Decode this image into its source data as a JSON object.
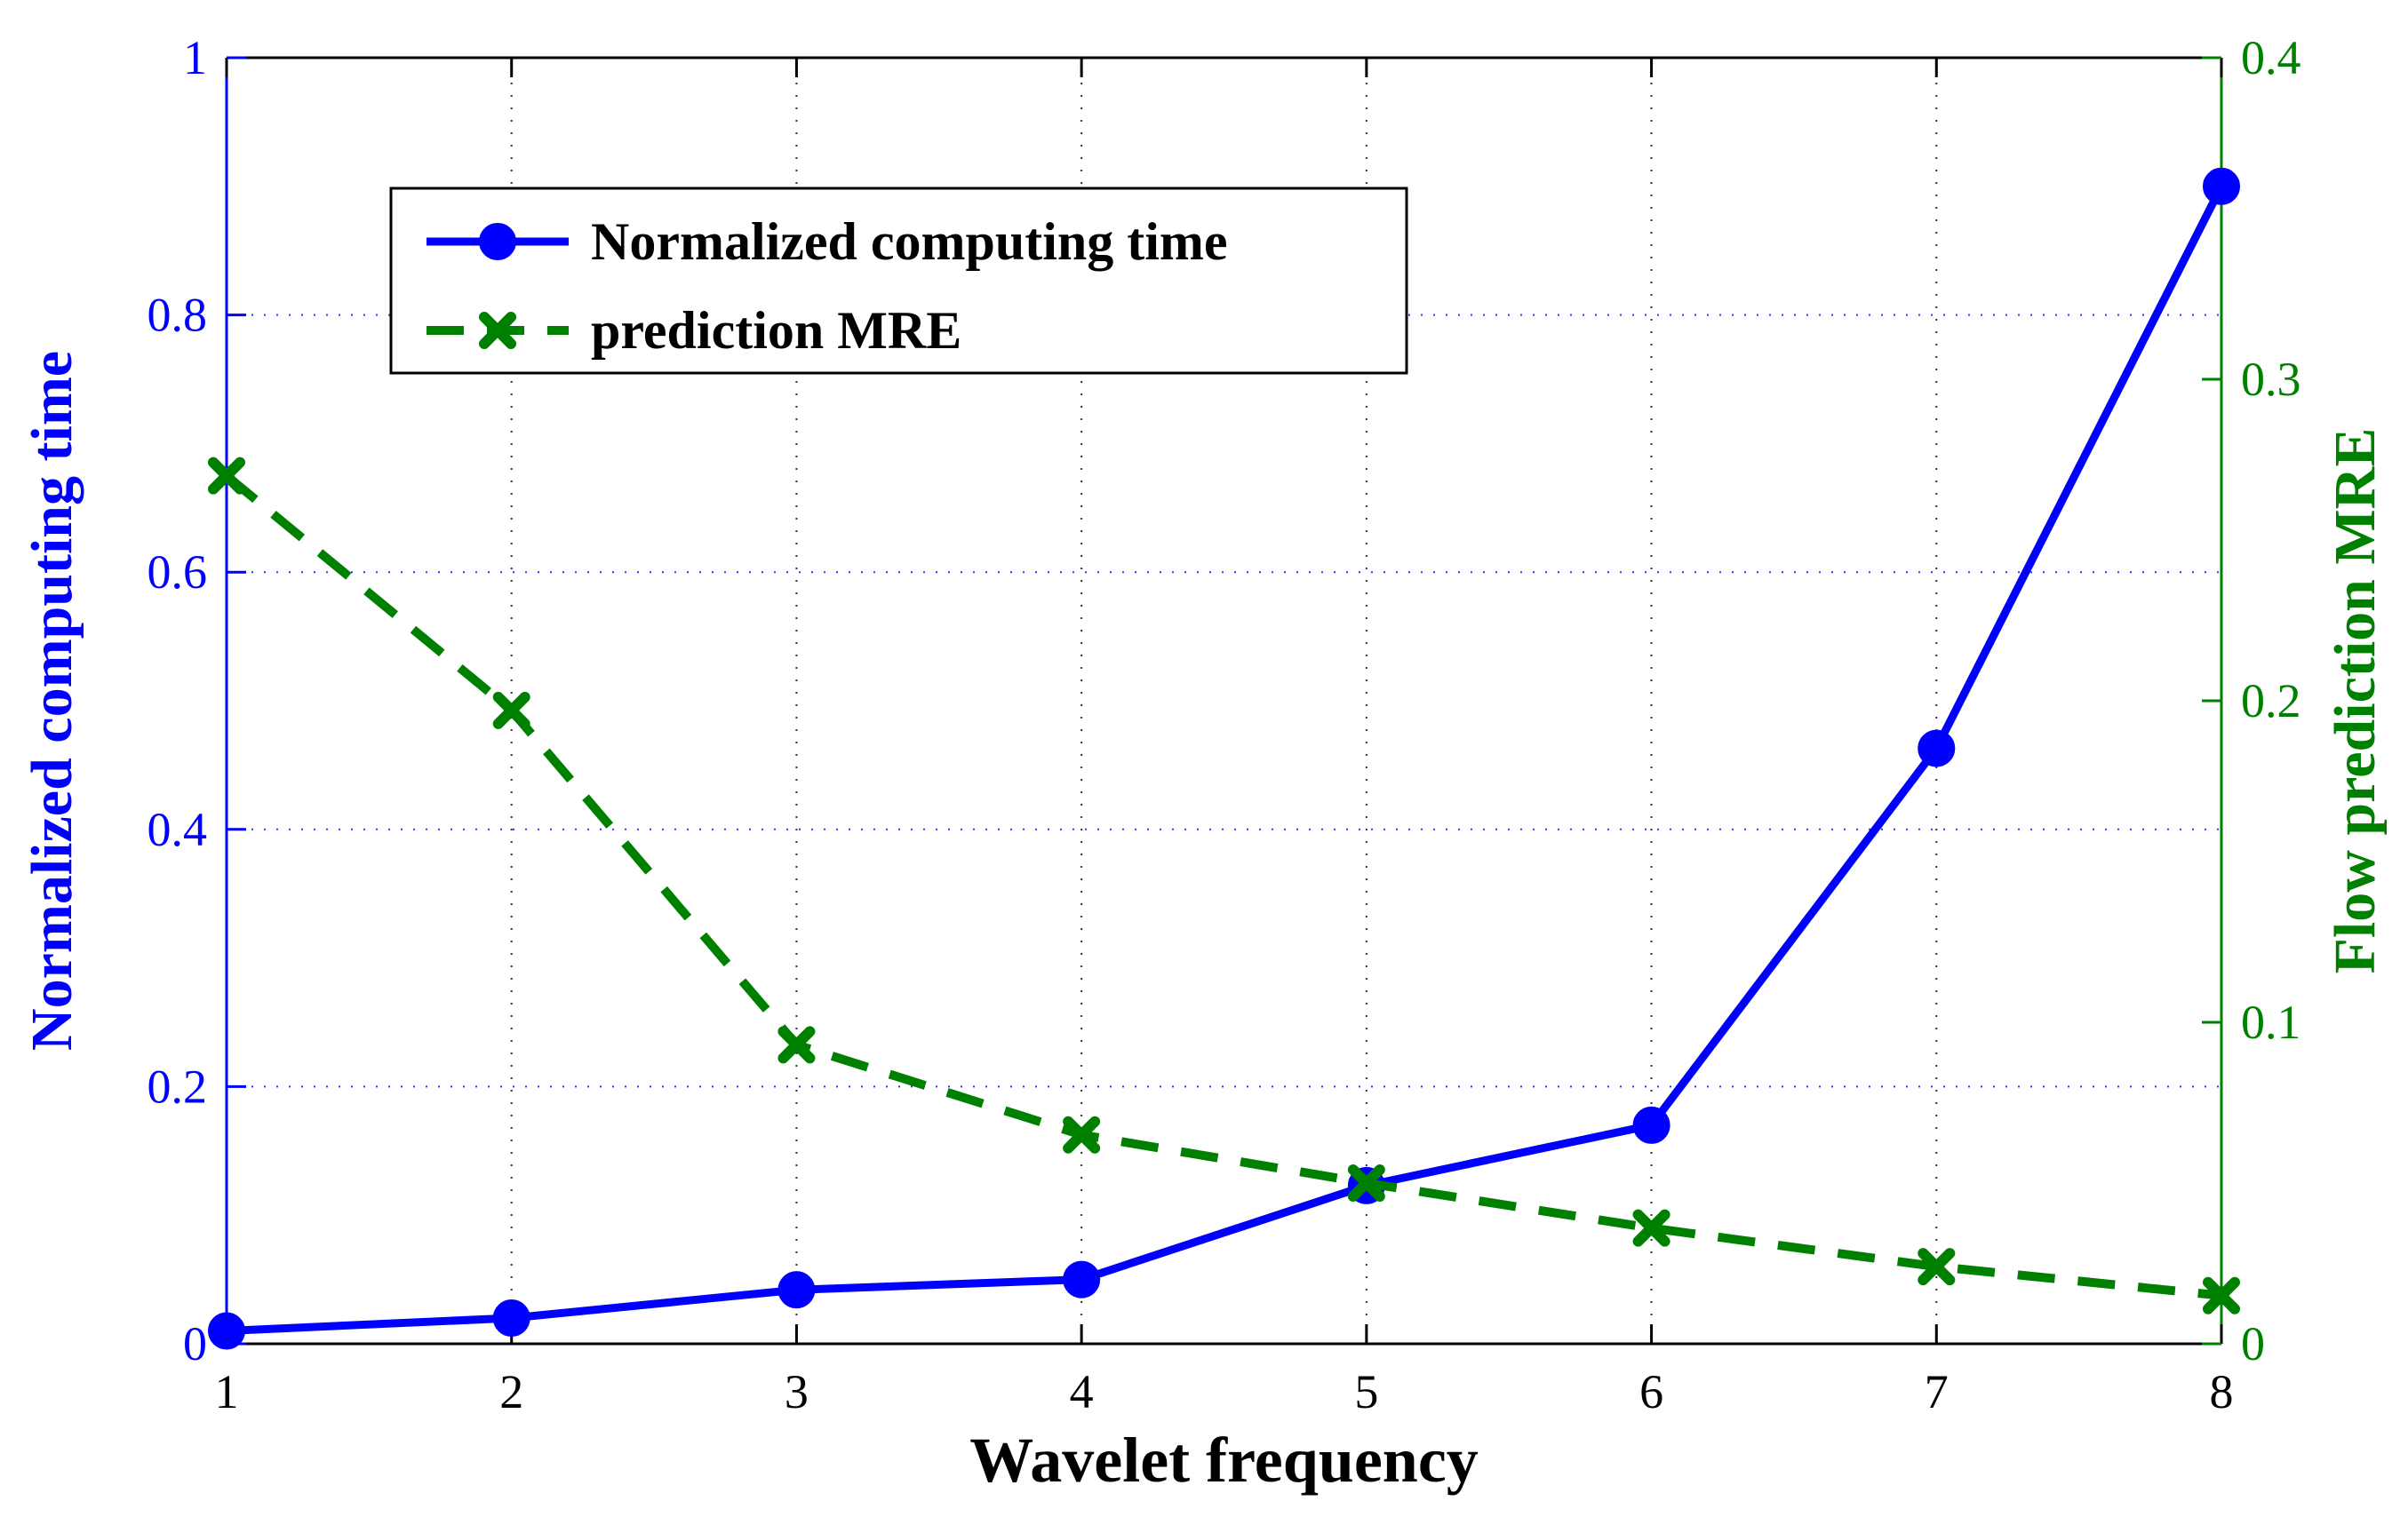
{
  "chart_data": {
    "type": "line",
    "title": "",
    "xlabel": "Wavelet frequency",
    "ylabel_left": "Normalized computing time",
    "ylabel_right": "Flow prediction MRE",
    "x": [
      1,
      2,
      3,
      4,
      5,
      6,
      7,
      8
    ],
    "xlim": [
      1,
      8
    ],
    "ylim_left": [
      0,
      1
    ],
    "ylim_right": [
      0,
      0.4
    ],
    "x_ticks": [
      1,
      2,
      3,
      4,
      5,
      6,
      7,
      8
    ],
    "x_tick_labels": [
      "1",
      "2",
      "3",
      "4",
      "5",
      "6",
      "7",
      "8"
    ],
    "y_left_ticks": [
      0,
      0.2,
      0.4,
      0.6,
      0.8,
      1
    ],
    "y_left_tick_labels": [
      "0",
      "0.2",
      "0.4",
      "0.6",
      "0.8",
      "1"
    ],
    "y_right_ticks": [
      0,
      0.1,
      0.2,
      0.3,
      0.4
    ],
    "y_right_tick_labels": [
      "0",
      "0.1",
      "0.2",
      "0.3",
      "0.4"
    ],
    "grid": true,
    "legend_position": "top-left",
    "series": [
      {
        "name": "Normalized computing time",
        "axis": "left",
        "color": "#0000ff",
        "line_style": "solid",
        "marker": "circle",
        "values": [
          0.01,
          0.02,
          0.042,
          0.05,
          0.123,
          0.17,
          0.463,
          0.9
        ]
      },
      {
        "name": "prediction MRE",
        "axis": "right",
        "color": "#008000",
        "line_style": "dashed",
        "marker": "x",
        "values": [
          0.27,
          0.197,
          0.093,
          0.065,
          0.05,
          0.036,
          0.024,
          0.015
        ]
      }
    ],
    "colors": {
      "left_axis": "#0000ff",
      "right_axis": "#008000",
      "frame": "#000000",
      "grid": "#000000"
    }
  }
}
